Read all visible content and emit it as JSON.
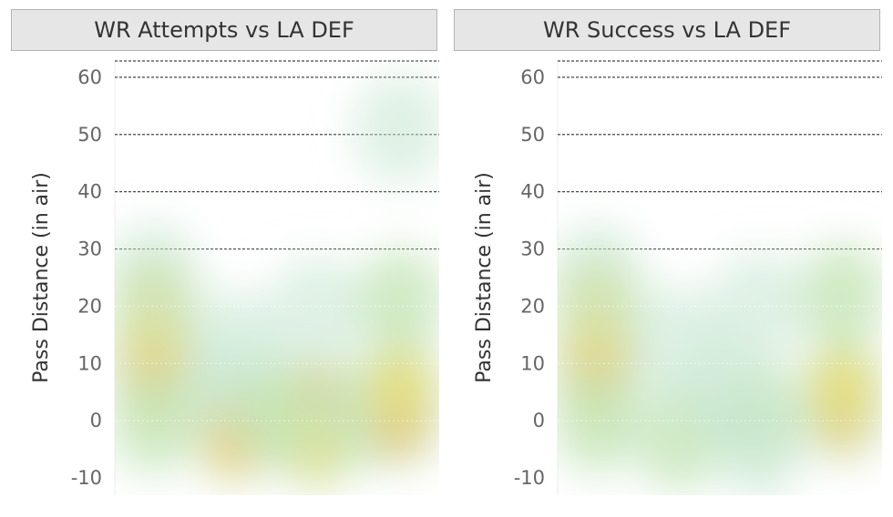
{
  "chart_data": [
    {
      "type": "heatmap",
      "title": "WR Attempts vs LA DEF",
      "ylabel": "Pass Distance (in air)",
      "ylim": [
        -13,
        63
      ],
      "yticks": [
        -10,
        0,
        10,
        20,
        30,
        40,
        50,
        60
      ],
      "grid_lines_dashed": [
        30,
        40,
        50,
        60
      ],
      "grid_lines_dotted": [
        0,
        10,
        20
      ],
      "points": [
        {
          "col": 0.12,
          "y": 8,
          "intensity": 1.0
        },
        {
          "col": 0.12,
          "y": 12,
          "intensity": 0.55
        },
        {
          "col": 0.12,
          "y": 20,
          "intensity": 0.35
        },
        {
          "col": 0.12,
          "y": 25,
          "intensity": 0.2
        },
        {
          "col": 0.12,
          "y": 0,
          "intensity": 0.3
        },
        {
          "col": 0.37,
          "y": -2,
          "intensity": 0.55
        },
        {
          "col": 0.37,
          "y": 13,
          "intensity": 0.12
        },
        {
          "col": 0.37,
          "y": 5,
          "intensity": 0.1
        },
        {
          "col": 0.62,
          "y": 2,
          "intensity": 0.8
        },
        {
          "col": 0.62,
          "y": -3,
          "intensity": 0.35
        },
        {
          "col": 0.62,
          "y": 19,
          "intensity": 0.2
        },
        {
          "col": 0.5,
          "y": 1,
          "intensity": 0.25
        },
        {
          "col": 0.78,
          "y": 1,
          "intensity": 0.3
        },
        {
          "col": 0.88,
          "y": 1,
          "intensity": 1.0
        },
        {
          "col": 0.88,
          "y": 6,
          "intensity": 0.45
        },
        {
          "col": 0.88,
          "y": 21,
          "intensity": 0.25
        },
        {
          "col": 0.88,
          "y": 51,
          "intensity": 0.18
        }
      ]
    },
    {
      "type": "heatmap",
      "title": "WR Success vs LA DEF",
      "ylabel": "Pass Distance (in air)",
      "ylim": [
        -13,
        63
      ],
      "yticks": [
        -10,
        0,
        10,
        20,
        30,
        40,
        50,
        60
      ],
      "grid_lines_dashed": [
        30,
        40,
        50,
        60
      ],
      "grid_lines_dotted": [
        0,
        10,
        20
      ],
      "points": [
        {
          "col": 0.12,
          "y": 8,
          "intensity": 1.0
        },
        {
          "col": 0.12,
          "y": 12,
          "intensity": 0.55
        },
        {
          "col": 0.12,
          "y": 20,
          "intensity": 0.35
        },
        {
          "col": 0.12,
          "y": 25,
          "intensity": 0.2
        },
        {
          "col": 0.12,
          "y": 0,
          "intensity": 0.3
        },
        {
          "col": 0.37,
          "y": -3,
          "intensity": 0.25
        },
        {
          "col": 0.37,
          "y": 14,
          "intensity": 0.18
        },
        {
          "col": 0.62,
          "y": 1,
          "intensity": 0.3
        },
        {
          "col": 0.62,
          "y": 20,
          "intensity": 0.18
        },
        {
          "col": 0.62,
          "y": -4,
          "intensity": 0.15
        },
        {
          "col": 0.88,
          "y": 2,
          "intensity": 0.85
        },
        {
          "col": 0.88,
          "y": 6,
          "intensity": 0.35
        },
        {
          "col": 0.88,
          "y": 22,
          "intensity": 0.3
        },
        {
          "col": 0.5,
          "y": 5,
          "intensity": 0.12
        }
      ]
    }
  ]
}
